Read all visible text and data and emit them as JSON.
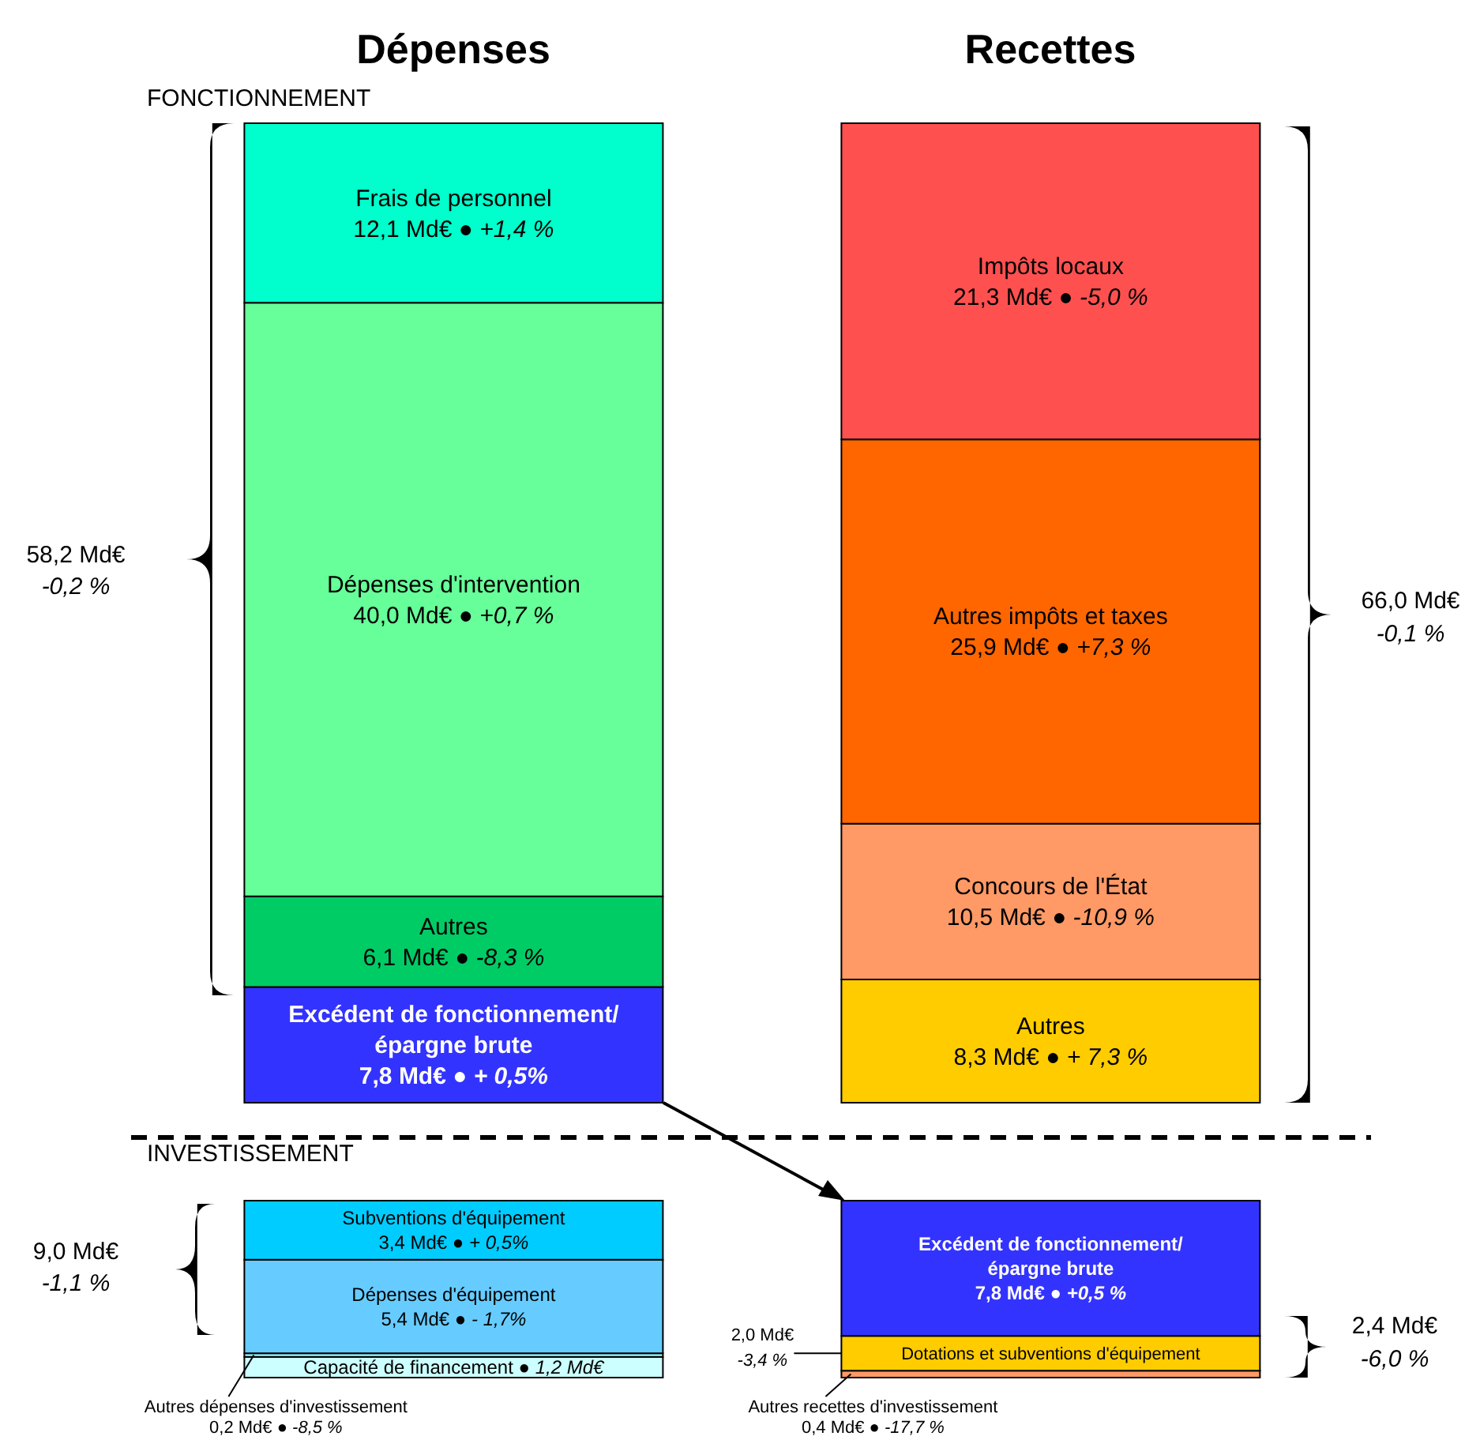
{
  "chart_data": [
    {
      "type": "bar",
      "stacked": true,
      "title": "FONCTIONNEMENT",
      "categories": [
        "Dépenses",
        "Recettes"
      ],
      "tick_labels": "x",
      "legend": false,
      "annotations": [
        "58,2 Md€",
        "-0,2 %",
        "66,0 Md€",
        "-0,1 %"
      ],
      "series": [
        {
          "name": "Excédent de fonctionnement/ épargne brute",
          "color": "#3333ff",
          "values": [
            7.8,
            null
          ],
          "value_labels": [
            "7,8 Md€ ● + 0,5%",
            null
          ]
        },
        {
          "name": "Autres",
          "color": "#00cc66",
          "values": [
            6.1,
            null
          ],
          "value_labels": [
            "6,1 Md€ ● -8,3 %",
            null
          ]
        },
        {
          "name": "Dépenses d'intervention",
          "color": "#66ff99",
          "values": [
            40.0,
            null
          ],
          "value_labels": [
            "40,0 Md€ ● +0,7 %",
            null
          ]
        },
        {
          "name": "Frais de personnel",
          "color": "#00ffcc",
          "values": [
            12.1,
            null
          ],
          "value_labels": [
            "12,1 Md€ ● +1,4 %",
            null
          ]
        },
        {
          "name": "Autres",
          "color": "#ffcc00",
          "values": [
            null,
            8.3
          ],
          "value_labels": [
            null,
            "8,3 Md€ ● + 7,3 %"
          ]
        },
        {
          "name": "Concours de l'État",
          "color": "#ff9966",
          "values": [
            null,
            10.5
          ],
          "value_labels": [
            null,
            "10,5 Md€ ● -10,9 %"
          ]
        },
        {
          "name": "Autres impôts et taxes",
          "color": "#ff6600",
          "values": [
            null,
            25.9
          ],
          "value_labels": [
            null,
            "25,9 Md€ ● +7,3 %"
          ]
        },
        {
          "name": "Impôts locaux",
          "color": "#ff5050",
          "values": [
            null,
            21.3
          ],
          "value_labels": [
            null,
            "21,3 Md€ ● -5,0 %"
          ]
        }
      ]
    },
    {
      "type": "bar",
      "stacked": true,
      "title": "INVESTISSEMENT",
      "categories": [
        null,
        null
      ],
      "tick_labels": false,
      "legend": false,
      "annotations": [
        "9,0 Md€",
        "-1,1 %",
        "2,4 Md€",
        "-6,0 %"
      ],
      "series": [
        {
          "color": "#ccffff",
          "values": [
            1.2,
            null
          ],
          "value_labels": [
            "Capacité de financement ● 1,2 Md€",
            null
          ]
        },
        {
          "name": "Autres dépenses d'investissement",
          "color": "#99ffff",
          "values": [
            0.2,
            null
          ],
          "value_labels": [
            "0,2 Md€ ● -8,5 %",
            null
          ]
        },
        {
          "name": "Dépenses d'équipement",
          "color": "#66ccff",
          "values": [
            5.4,
            null
          ],
          "value_labels": [
            "5,4 Md€ ● - 1,7%",
            null
          ]
        },
        {
          "name": "Subventions d'équipement",
          "color": "#00ccff",
          "values": [
            3.4,
            null
          ],
          "value_labels": [
            "3,4 Md€ ● + 0,5%",
            null
          ]
        },
        {
          "name": "Autres recettes d'investissement",
          "color": "#ff9966",
          "values": [
            null,
            0.4
          ],
          "value_labels": [
            null,
            "0,4 Md€ ● -17,7 %"
          ]
        },
        {
          "name": "Dotations et subventions d'équipement",
          "color": "#ffcc00",
          "values": [
            null,
            2.0
          ],
          "value_labels": [
            null,
            "2,0 Md€\n-3,4 %"
          ]
        },
        {
          "name": "Excédent de fonctionnement/ épargne brute",
          "color": "#3333ff",
          "values": [
            null,
            7.8
          ],
          "value_labels": [
            null,
            "7,8 Md€ ● +0,5 %"
          ]
        }
      ]
    }
  ]
}
